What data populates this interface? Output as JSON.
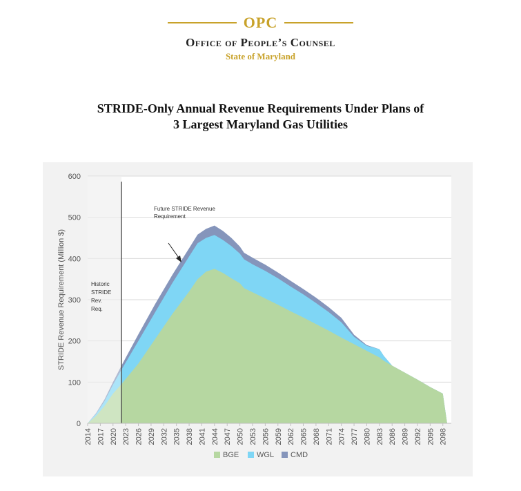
{
  "header": {
    "logo": "OPC",
    "org_name": "Office of People’s Counsel",
    "state": "State of Maryland"
  },
  "title_line1": "STRIDE-Only Annual Revenue Requirements Under Plans of",
  "title_line2": "3 Largest Maryland Gas Utilities",
  "colors": {
    "BGE": "#b6d7a1",
    "WGL": "#7fd6f5",
    "CMD": "#8595bb",
    "accent": "#c8a22a"
  },
  "chart_data": {
    "type": "area",
    "stacked": true,
    "ylabel": "STRIDE Revenue Requirement (Million $)",
    "xlabel": "",
    "ylim": [
      0,
      600
    ],
    "xlim": [
      2014,
      2100
    ],
    "yticks": [
      0,
      100,
      200,
      300,
      400,
      500,
      600
    ],
    "xticks": [
      2014,
      2017,
      2020,
      2023,
      2026,
      2029,
      2032,
      2035,
      2038,
      2041,
      2044,
      2047,
      2050,
      2053,
      2056,
      2059,
      2062,
      2065,
      2068,
      2071,
      2074,
      2077,
      2080,
      2083,
      2086,
      2089,
      2092,
      2095,
      2098
    ],
    "grid": true,
    "legend": "bottom",
    "x": [
      2014,
      2016,
      2018,
      2020,
      2022,
      2026,
      2030,
      2034,
      2038,
      2040,
      2042,
      2044,
      2046,
      2048,
      2050,
      2051,
      2053,
      2056,
      2059,
      2062,
      2065,
      2068,
      2071,
      2074,
      2077,
      2080,
      2083,
      2084,
      2086,
      2089,
      2092,
      2095,
      2098,
      2099
    ],
    "series": [
      {
        "name": "BGE",
        "values": [
          0,
          18,
          42,
          72,
          95,
          145,
          205,
          265,
          320,
          350,
          368,
          375,
          365,
          352,
          340,
          328,
          318,
          303,
          288,
          272,
          257,
          241,
          225,
          208,
          192,
          176,
          160,
          152,
          140,
          123,
          106,
          88,
          72,
          0
        ]
      },
      {
        "name": "WGL",
        "values": [
          0,
          5,
          12,
          22,
          35,
          55,
          65,
          75,
          85,
          87,
          82,
          82,
          80,
          78,
          72,
          70,
          68,
          67,
          64,
          60,
          56,
          51,
          45,
          37,
          18,
          12,
          20,
          12,
          0,
          0,
          0,
          0,
          0,
          0
        ]
      },
      {
        "name": "CMD",
        "values": [
          0,
          2,
          4,
          6,
          10,
          16,
          20,
          20,
          20,
          21,
          22,
          23,
          22,
          20,
          17,
          16,
          16,
          15,
          14,
          14,
          13,
          13,
          12,
          11,
          5,
          2,
          0,
          0,
          0,
          0,
          0,
          0,
          0,
          0
        ]
      }
    ],
    "historic_region": [
      2014,
      2022
    ],
    "annotations": [
      {
        "text": "Historic STRIDE Rev. Req.",
        "lines": [
          "Historic",
          "STRIDE",
          "Rev.",
          "Req."
        ]
      },
      {
        "text": "Future STRIDE Revenue Requirement",
        "lines": [
          "Future STRIDE Revenue",
          "Requirement"
        ]
      }
    ]
  }
}
